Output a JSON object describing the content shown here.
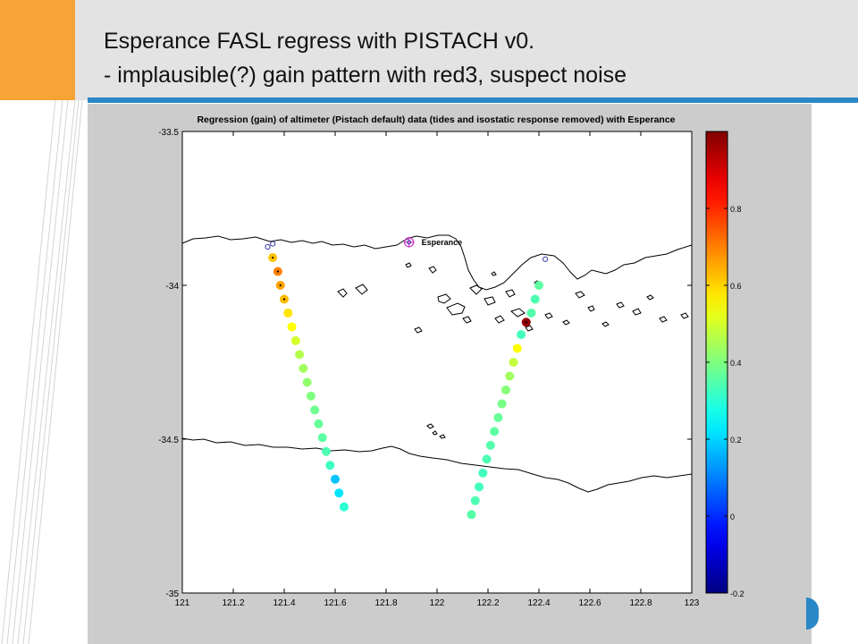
{
  "slide": {
    "title_line1": "Esperance FASL regress with PISTACH v0.",
    "title_line2": "- implausible(?) gain pattern with red3, suspect noise",
    "colors": {
      "header_bg": "#e3e3e3",
      "accent": "#f7a336",
      "rule": "#2b88c8",
      "figure_bg": "#cccccc"
    }
  },
  "chart_data": {
    "type": "scatter",
    "title": "Regression (gain) of altimeter (Pistach default) data (tides and isostatic response removed) with Esperance",
    "xlabel": "",
    "ylabel": "",
    "xlim": [
      121,
      123
    ],
    "ylim": [
      -35,
      -33.5
    ],
    "x_ticks": [
      "121",
      "121.2",
      "121.4",
      "121.6",
      "121.8",
      "122",
      "122.2",
      "122.4",
      "122.6",
      "122.8",
      "123"
    ],
    "y_ticks": [
      "-33.5",
      "-34",
      "-34.5",
      "-35"
    ],
    "colorbar": {
      "min": -0.2,
      "max": 1.0,
      "colormap": "jet",
      "ticks": [
        "0.8",
        "0.6",
        "0.4",
        "0.2",
        "0",
        "-0.2"
      ],
      "tick_values": [
        0.8,
        0.6,
        0.4,
        0.2,
        0,
        -0.2
      ]
    },
    "station": {
      "label": "Esperance",
      "lon": 121.89,
      "lat": -33.86
    },
    "open_markers": [
      {
        "lon": 121.335,
        "lat": -33.875
      },
      {
        "lon": 121.355,
        "lat": -33.865
      },
      {
        "lon": 122.425,
        "lat": -33.915
      }
    ],
    "series": [
      {
        "points": [
          {
            "lon": 121.355,
            "lat": -33.91,
            "gain": 0.62
          },
          {
            "lon": 121.375,
            "lat": -33.955,
            "gain": 0.7
          },
          {
            "lon": 121.385,
            "lat": -34.0,
            "gain": 0.66
          },
          {
            "lon": 121.4,
            "lat": -34.045,
            "gain": 0.63
          },
          {
            "lon": 121.415,
            "lat": -34.09,
            "gain": 0.58
          },
          {
            "lon": 121.43,
            "lat": -34.135,
            "gain": 0.55
          },
          {
            "lon": 121.445,
            "lat": -34.18,
            "gain": 0.5
          },
          {
            "lon": 121.46,
            "lat": -34.225,
            "gain": 0.46
          },
          {
            "lon": 121.475,
            "lat": -34.27,
            "gain": 0.44
          },
          {
            "lon": 121.49,
            "lat": -34.315,
            "gain": 0.42
          },
          {
            "lon": 121.505,
            "lat": -34.36,
            "gain": 0.4
          },
          {
            "lon": 121.52,
            "lat": -34.405,
            "gain": 0.38
          },
          {
            "lon": 121.535,
            "lat": -34.45,
            "gain": 0.37
          },
          {
            "lon": 121.55,
            "lat": -34.495,
            "gain": 0.36
          },
          {
            "lon": 121.565,
            "lat": -34.54,
            "gain": 0.34
          },
          {
            "lon": 121.58,
            "lat": -34.585,
            "gain": 0.32
          },
          {
            "lon": 121.6,
            "lat": -34.63,
            "gain": 0.18
          },
          {
            "lon": 121.615,
            "lat": -34.675,
            "gain": 0.22
          },
          {
            "lon": 121.635,
            "lat": -34.72,
            "gain": 0.3
          }
        ]
      },
      {
        "points": [
          {
            "lon": 122.4,
            "lat": -34.0,
            "gain": 0.36
          },
          {
            "lon": 122.385,
            "lat": -34.045,
            "gain": 0.34
          },
          {
            "lon": 122.37,
            "lat": -34.09,
            "gain": 0.35
          },
          {
            "lon": 122.35,
            "lat": -34.12,
            "gain": 0.98
          },
          {
            "lon": 122.33,
            "lat": -34.16,
            "gain": 0.33
          },
          {
            "lon": 122.315,
            "lat": -34.205,
            "gain": 0.55
          },
          {
            "lon": 122.3,
            "lat": -34.25,
            "gain": 0.48
          },
          {
            "lon": 122.285,
            "lat": -34.295,
            "gain": 0.44
          },
          {
            "lon": 122.27,
            "lat": -34.34,
            "gain": 0.41
          },
          {
            "lon": 122.255,
            "lat": -34.385,
            "gain": 0.39
          },
          {
            "lon": 122.24,
            "lat": -34.43,
            "gain": 0.37
          },
          {
            "lon": 122.225,
            "lat": -34.475,
            "gain": 0.36
          },
          {
            "lon": 122.21,
            "lat": -34.52,
            "gain": 0.35
          },
          {
            "lon": 122.195,
            "lat": -34.565,
            "gain": 0.34
          },
          {
            "lon": 122.18,
            "lat": -34.61,
            "gain": 0.33
          },
          {
            "lon": 122.165,
            "lat": -34.655,
            "gain": 0.33
          },
          {
            "lon": 122.15,
            "lat": -34.7,
            "gain": 0.34
          },
          {
            "lon": 122.135,
            "lat": -34.745,
            "gain": 0.35
          }
        ]
      }
    ]
  }
}
